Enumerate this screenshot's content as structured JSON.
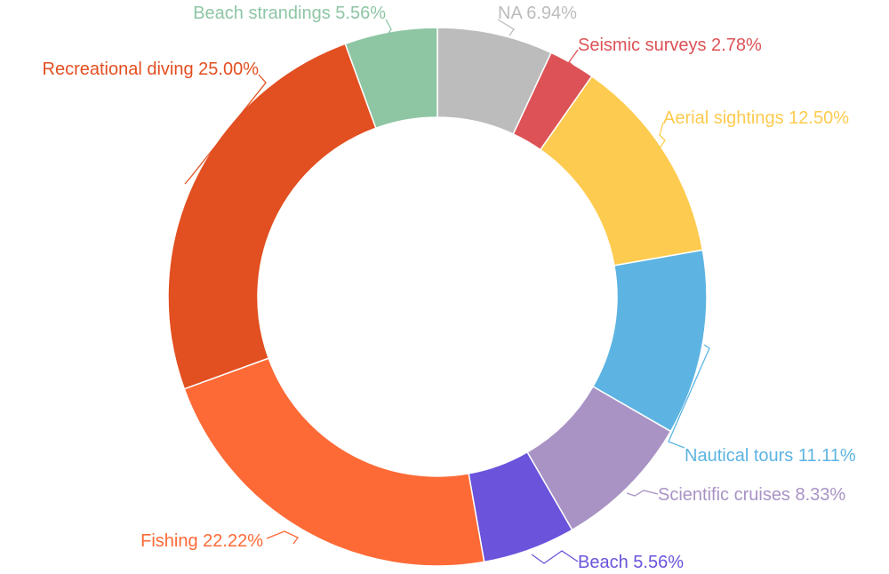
{
  "chart_data": {
    "type": "pie",
    "variant": "donut",
    "unit": "%",
    "slices": [
      {
        "label": "NA",
        "value": 6.94,
        "value_text": "6.94%",
        "color": "#bdbcbc"
      },
      {
        "label": "Seismic surveys",
        "value": 2.78,
        "value_text": "2.78%",
        "color": "#dc5256"
      },
      {
        "label": "Aerial sightings",
        "value": 12.5,
        "value_text": "12.50%",
        "color": "#fdcb4f"
      },
      {
        "label": "Nautical tours",
        "value": 11.11,
        "value_text": "11.11%",
        "color": "#5db4e2"
      },
      {
        "label": "Scientific cruises",
        "value": 8.33,
        "value_text": "8.33%",
        "color": "#a993c5"
      },
      {
        "label": "Beach",
        "value": 5.56,
        "value_text": "5.56%",
        "color": "#6b53dc"
      },
      {
        "label": "Fishing",
        "value": 22.22,
        "value_text": "22.22%",
        "color": "#fd6a36"
      },
      {
        "label": "Recreational diving",
        "value": 25.0,
        "value_text": "25.00%",
        "color": "#e24f20"
      },
      {
        "label": "Beach strandings",
        "value": 5.56,
        "value_text": "5.56%",
        "color": "#8ec6a4"
      }
    ],
    "legend": "none",
    "labels": "outside with leader lines"
  }
}
